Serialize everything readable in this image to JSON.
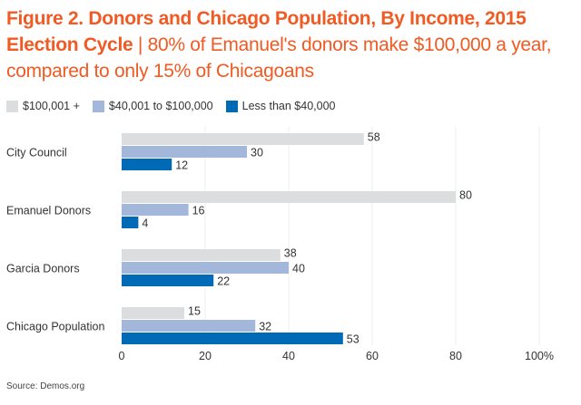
{
  "chart_data": {
    "type": "bar",
    "orientation": "horizontal",
    "title": "Figure 2. Donors and Chicago Population, By Income, 2015 Election Cycle",
    "subtitle": "80% of Emanuel's donors make $100,000 a year, compared to only 15% of Chicagoans",
    "categories": [
      "City Council",
      "Emanuel Donors",
      "Garcia Donors",
      "Chicago Population"
    ],
    "series": [
      {
        "name": "$100,001 +",
        "color": "#dcdddf",
        "values": [
          58,
          80,
          38,
          15
        ]
      },
      {
        "name": "$40,001 to $100,000",
        "color": "#a3b7da",
        "values": [
          30,
          16,
          40,
          32
        ]
      },
      {
        "name": "Less than $40,000",
        "color": "#006ab6",
        "values": [
          12,
          4,
          22,
          53
        ]
      }
    ],
    "xticks": [
      "0",
      "20",
      "40",
      "60",
      "80",
      "100%"
    ],
    "xlim": [
      0,
      100
    ],
    "grid": true,
    "legend_position": "top-left",
    "source": "Source: Demos.org"
  },
  "colors": {
    "title": "#f15a22"
  }
}
